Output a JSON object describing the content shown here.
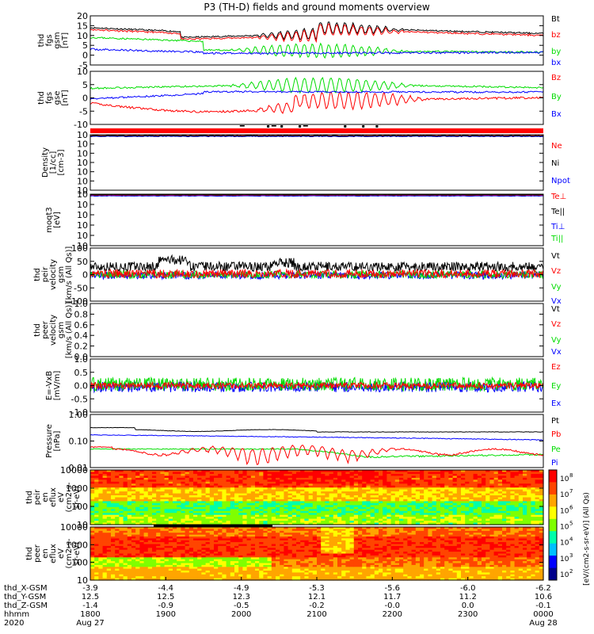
{
  "title": "P3 (TH-D) fields and ground moments overview",
  "colors": {
    "black": "#000000",
    "red": "#ff0000",
    "green": "#00dd00",
    "blue": "#0000ff"
  },
  "chart_data": [
    {
      "type": "line",
      "ylabel": [
        "thd",
        "fgs",
        "gsm",
        "[nT]"
      ],
      "ylim": [
        -5,
        20
      ],
      "yticks": [
        "20",
        "15",
        "10",
        "5",
        "0",
        "-5"
      ],
      "legend": [
        {
          "name": "Bt",
          "color": "black"
        },
        {
          "name": "bz",
          "color": "red"
        },
        {
          "name": "by",
          "color": "green"
        },
        {
          "name": "bx",
          "color": "blue"
        }
      ]
    },
    {
      "type": "line",
      "ylabel": [
        "thd",
        "fgs",
        "gse",
        "[nT]"
      ],
      "ylim": [
        -15,
        10
      ],
      "yticks": [
        "10",
        "5",
        "0",
        "-5",
        "-10"
      ],
      "legend": [
        {
          "name": "Bz",
          "color": "red"
        },
        {
          "name": "By",
          "color": "green"
        },
        {
          "name": "Bx",
          "color": "blue"
        }
      ]
    },
    {
      "type": "line",
      "ylabel": [
        "Density",
        "[1/cc]",
        "[cm-3]"
      ],
      "yticks": [
        "10",
        "10",
        "10",
        "10",
        "10",
        "10",
        "10"
      ],
      "legend": [
        {
          "name": "Ne",
          "color": "red"
        },
        {
          "name": "Ni",
          "color": "black"
        },
        {
          "name": "Npot",
          "color": "blue"
        }
      ]
    },
    {
      "type": "line",
      "ylabel": [
        "moqt3",
        "[eV]"
      ],
      "yticks": [
        "10",
        "10",
        "10",
        "10",
        "10",
        "10"
      ],
      "legend": [
        {
          "name": "Te⊥",
          "color": "red"
        },
        {
          "name": "Te||",
          "color": "black"
        },
        {
          "name": "Ti⊥",
          "color": "blue"
        },
        {
          "name": "Ti||",
          "color": "green"
        }
      ]
    },
    {
      "type": "line",
      "ylabel": [
        "thd",
        "peir",
        "velocity",
        "gsm",
        "[km/s (All Qs)]"
      ],
      "ylim": [
        -100,
        100
      ],
      "yticks": [
        "100",
        "50",
        "0",
        "-50",
        "-100"
      ],
      "legend": [
        {
          "name": "Vt",
          "color": "black"
        },
        {
          "name": "Vz",
          "color": "red"
        },
        {
          "name": "Vy",
          "color": "green"
        },
        {
          "name": "Vx",
          "color": "blue"
        }
      ]
    },
    {
      "type": "line",
      "ylabel": [
        "thd",
        "peer",
        "velocity",
        "gsm",
        "[km/s (All Qs)]"
      ],
      "ylim": [
        0,
        1
      ],
      "yticks": [
        "1.0",
        "0.8",
        "0.6",
        "0.4",
        "0.2",
        "0.0"
      ],
      "legend": [
        {
          "name": "Vt",
          "color": "black"
        },
        {
          "name": "Vz",
          "color": "red"
        },
        {
          "name": "Vy",
          "color": "green"
        },
        {
          "name": "Vx",
          "color": "blue"
        }
      ]
    },
    {
      "type": "line",
      "ylabel": [
        "E=-VxB",
        "[mV/m]"
      ],
      "ylim": [
        -1,
        1
      ],
      "yticks": [
        "1.0",
        "0.5",
        "0.0",
        "-0.5",
        "-1.0"
      ],
      "legend": [
        {
          "name": "Ez",
          "color": "red"
        },
        {
          "name": "Ey",
          "color": "green"
        },
        {
          "name": "Ex",
          "color": "blue"
        }
      ]
    },
    {
      "type": "line",
      "ylabel": [
        "Pressure",
        "[nPa]"
      ],
      "yscale": "log",
      "ylim": [
        0.01,
        1
      ],
      "yticks": [
        "1.00",
        "0.10",
        "0.01"
      ],
      "legend": [
        {
          "name": "Pt",
          "color": "black"
        },
        {
          "name": "Pb",
          "color": "red"
        },
        {
          "name": "Pe",
          "color": "green"
        },
        {
          "name": "Pi",
          "color": "blue"
        }
      ]
    },
    {
      "type": "heatmap",
      "ylabel": [
        "thd",
        "peir",
        "en",
        "eflux",
        "eV",
        "(cm2-s-",
        "sr-eV)"
      ],
      "yticks": [
        "10000",
        "1000",
        "100",
        "10"
      ]
    },
    {
      "type": "heatmap",
      "ylabel": [
        "thd",
        "peer",
        "en",
        "eflux",
        "eV",
        "(cm2-s-",
        "sr-eV)"
      ],
      "yticks": [
        "10000",
        "1000",
        "100",
        "10"
      ]
    }
  ],
  "colorbar": {
    "label": "[eV/(cm2-s-sr-eV)] (All Qs)",
    "ticks": [
      "10",
      "10",
      "10",
      "10",
      "10",
      "10",
      "10"
    ],
    "exps": [
      "8",
      "7",
      "6",
      "5",
      "4",
      "3",
      "2"
    ]
  },
  "xaxis": {
    "rows": [
      {
        "label": "thd_X-GSM",
        "values": [
          "-3.9",
          "-4.4",
          "-4.9",
          "-5.3",
          "-5.6",
          "-6.0",
          "-6.2"
        ]
      },
      {
        "label": "thd_Y-GSM",
        "values": [
          "12.5",
          "12.5",
          "12.3",
          "12.1",
          "11.7",
          "11.2",
          "10.6"
        ]
      },
      {
        "label": "thd_Z-GSM",
        "values": [
          "-1.4",
          "-0.9",
          "-0.5",
          "-0.2",
          "-0.0",
          "0.0",
          "-0.1"
        ]
      },
      {
        "label": "hhmm",
        "values": [
          "1800",
          "1900",
          "2000",
          "2100",
          "2200",
          "2300",
          "0000"
        ]
      },
      {
        "label": "2020",
        "values": [
          "Aug 27",
          "",
          "",
          "",
          "",
          "",
          "Aug 28"
        ]
      }
    ]
  }
}
